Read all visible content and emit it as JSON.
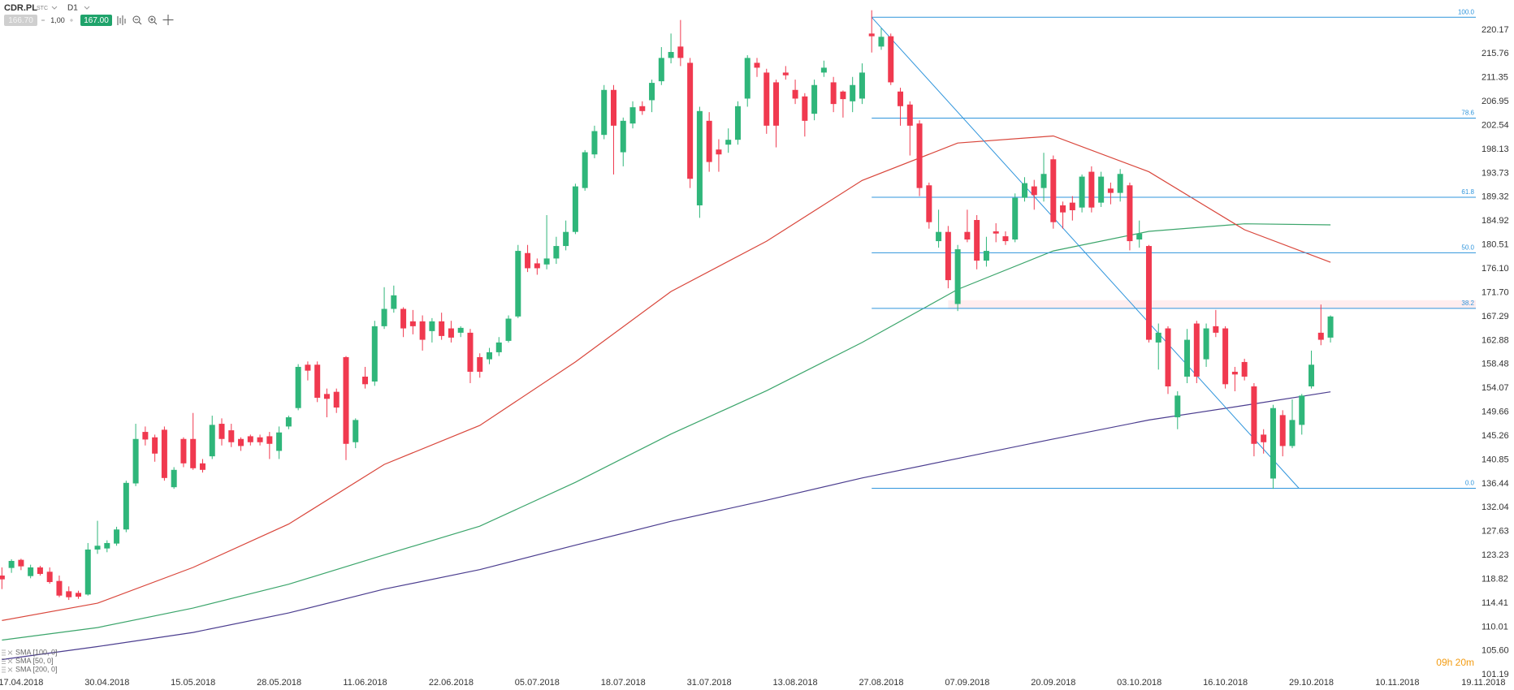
{
  "header": {
    "symbol": "CDR.PL",
    "market": "STC",
    "timeframe": "D1",
    "bid": "166.70",
    "quantity": "1,00",
    "ask": "167.00"
  },
  "countdown": "09h 20m",
  "chart_data": {
    "type": "candlestick",
    "up_color": "#2fb67a",
    "down_color": "#f0394f",
    "candles": {
      "open": [
        119.5,
        120.9,
        122.4,
        119.4,
        121,
        120.2,
        118.5,
        116.6,
        116.3,
        116,
        124.3,
        124.5,
        125.4,
        128,
        136.5,
        146,
        145,
        146.4,
        135.8,
        144.7,
        144.7,
        140.2,
        141.5,
        147.5,
        146.3,
        144.7,
        145.2,
        145,
        145.2,
        142.5,
        147,
        150.4,
        158.4,
        158.4,
        153,
        153.4,
        159.8,
        144.1,
        156.2,
        155.3,
        165.5,
        168.7,
        168.7,
        166.4,
        166.4,
        164.6,
        166.4,
        165.1,
        164.3,
        164.3,
        159.8,
        159.4,
        160.7,
        162.8,
        167.3,
        179,
        177.1,
        176.9,
        178,
        180.3,
        182.9,
        191,
        197.2,
        200.8,
        209.1,
        197.6,
        202.9,
        206.1,
        207.2,
        210.7,
        215,
        217.1,
        214.1,
        187.8,
        203.4,
        198.1,
        199,
        199.9,
        207.5,
        214.1,
        212.3,
        210.5,
        212.3,
        209.1,
        207.9,
        204.7,
        212.3,
        210.5,
        208.8,
        207,
        207.5,
        219.5,
        217.1,
        219,
        208.8,
        206.4,
        202.9,
        191.5,
        181.2,
        182.9,
        169.6,
        182.9,
        185.1,
        177.6,
        183,
        182.1,
        181.5,
        189.2,
        191.3,
        191,
        196.3,
        187.8,
        188.3,
        187.4,
        194,
        188.3,
        190.9,
        190.1,
        191.5,
        181.5,
        180.3,
        162.5,
        165.1,
        148.7,
        156.2,
        166,
        159.4,
        165.5,
        165.1,
        157.1,
        158.9,
        154.4,
        145.5,
        137.4,
        149.1,
        143.4,
        147.3,
        154.4,
        164.3,
        163.4
      ],
      "high": [
        121,
        122.5,
        122.6,
        121.5,
        121.3,
        121,
        119.5,
        117.5,
        116.7,
        125.5,
        129.6,
        126,
        128.5,
        137,
        147.5,
        147,
        145.5,
        147,
        139.5,
        145,
        149.5,
        141,
        149,
        148.5,
        147.5,
        145,
        145.5,
        145.5,
        146,
        147,
        149,
        158.5,
        159,
        159,
        154,
        154,
        160,
        148.5,
        158,
        166.5,
        172.7,
        173,
        169,
        168.5,
        167.5,
        167,
        168,
        166.5,
        165.5,
        165,
        160.5,
        161.5,
        163.5,
        167.5,
        180.5,
        180.5,
        178,
        186,
        182,
        185,
        191.8,
        198,
        202.5,
        210,
        210,
        204,
        207,
        207,
        211,
        217,
        219.5,
        222,
        215,
        206,
        205,
        200,
        202,
        207,
        215.5,
        215,
        213,
        211,
        213.5,
        211,
        208.5,
        211,
        214.5,
        211.5,
        209,
        211.5,
        214,
        223.8,
        220.5,
        219.5,
        209.5,
        207,
        203.5,
        192,
        187,
        184,
        180.5,
        187,
        186,
        182,
        184.5,
        183,
        190,
        193,
        192.5,
        197.5,
        197,
        188.5,
        189.5,
        193.5,
        195,
        194,
        192,
        194.5,
        192,
        185,
        180.5,
        166,
        165.5,
        153.5,
        165,
        166.5,
        166,
        168.5,
        165.5,
        158,
        159.5,
        155,
        146.5,
        151,
        150,
        152,
        153,
        161,
        169.5,
        167.5
      ],
      "low": [
        117,
        120,
        120.5,
        119,
        119.5,
        118,
        115.5,
        115,
        115.2,
        115.8,
        123.5,
        123.8,
        125,
        127.5,
        136,
        143.5,
        140.5,
        137,
        135.5,
        139.5,
        139,
        138.5,
        141,
        143.5,
        143.2,
        142.5,
        143.5,
        143.5,
        141,
        141,
        146.5,
        150,
        155.5,
        151.5,
        148.7,
        149.5,
        140.8,
        143,
        154,
        154.5,
        165,
        168,
        163.5,
        164,
        161,
        162.5,
        163,
        162.5,
        163.5,
        155,
        156,
        158.5,
        160,
        162.5,
        167,
        175.5,
        175,
        176,
        177,
        179.5,
        182.5,
        190.5,
        196.5,
        200,
        193.5,
        195,
        202,
        204.5,
        205,
        210,
        214,
        213.5,
        191,
        185.5,
        194,
        194,
        197.5,
        199,
        206,
        211.5,
        201,
        198.5,
        211,
        206.5,
        200.5,
        203.5,
        211.5,
        205,
        204,
        205,
        206.5,
        216,
        216.5,
        210,
        202.5,
        197,
        189.5,
        183.5,
        180,
        172.5,
        168.3,
        181,
        176,
        176.5,
        181,
        180.5,
        181,
        188.5,
        187,
        188.5,
        183.5,
        183.5,
        185,
        186.5,
        186.5,
        187.5,
        188,
        188.5,
        179.5,
        180,
        162.5,
        157.5,
        153,
        146.5,
        155,
        155,
        158,
        163.5,
        154,
        153.5,
        155.5,
        141.5,
        142,
        135.5,
        141.5,
        143,
        145.5,
        154,
        162,
        162.5
      ],
      "close": [
        118.8,
        122.2,
        121.2,
        121,
        119.8,
        118.3,
        115.8,
        115.5,
        115.6,
        124.3,
        125,
        125.5,
        128,
        136.6,
        144.7,
        144.6,
        142,
        137.5,
        139,
        140.2,
        139.3,
        139,
        147.3,
        144.7,
        144.1,
        143.4,
        144.1,
        144.1,
        143.8,
        145.9,
        148.7,
        158,
        157.3,
        152.3,
        152.1,
        150.5,
        143.8,
        148.2,
        154.8,
        165.5,
        168.7,
        171.2,
        165.1,
        165.5,
        163,
        166.4,
        163.7,
        163.4,
        165.2,
        157.1,
        157.1,
        160.7,
        162.5,
        166.9,
        179.4,
        176.2,
        176.2,
        178,
        180.3,
        182.9,
        191.3,
        197.6,
        201.5,
        209.1,
        202.5,
        203.4,
        205.9,
        205.2,
        210.4,
        215,
        216.1,
        215,
        192.7,
        205.2,
        195.8,
        197.2,
        199.9,
        206.1,
        215,
        213.2,
        202.5,
        202.5,
        211.8,
        207.5,
        203.4,
        210,
        213.2,
        206.5,
        207.4,
        210,
        212.3,
        219,
        218.9,
        210.5,
        206.1,
        202.5,
        191,
        184.7,
        182.9,
        174,
        179.7,
        181.5,
        177.6,
        179.4,
        182.6,
        181.2,
        189.2,
        191.9,
        189.7,
        193.6,
        184.7,
        186.5,
        186.9,
        193.1,
        187.4,
        193.1,
        190.1,
        193.6,
        181.2,
        182.6,
        163,
        164.3,
        154.4,
        152.7,
        163,
        156.2,
        165.1,
        164.3,
        154.8,
        156.6,
        156.2,
        143.8,
        144.1,
        150.4,
        143.4,
        148.2,
        152.7,
        158.4,
        163,
        167.3
      ]
    },
    "series": [
      {
        "name": "SMA [100, 0]",
        "color": "#3ba56b",
        "x": [
          0,
          10,
          20,
          30,
          40,
          50,
          60,
          70,
          80,
          90,
          100,
          110,
          120,
          130,
          139
        ],
        "values": [
          107.6,
          109.9,
          113.5,
          117.9,
          123.3,
          128.6,
          136.7,
          145.6,
          153.6,
          162.5,
          172.3,
          179.4,
          183.0,
          184.4,
          184.2
        ]
      },
      {
        "name": "SMA [50, 0]",
        "color": "#d9463b",
        "x": [
          0,
          10,
          20,
          30,
          40,
          50,
          60,
          70,
          80,
          90,
          100,
          110,
          120,
          130,
          139
        ],
        "values": [
          111.2,
          114.4,
          121.0,
          129.0,
          140.0,
          147.2,
          158.9,
          171.9,
          181.2,
          192.4,
          199.3,
          200.6,
          194.0,
          183.3,
          177.3
        ]
      },
      {
        "name": "SMA [200, 0]",
        "color": "#4b3d8f",
        "x": [
          0,
          10,
          20,
          30,
          40,
          50,
          60,
          70,
          80,
          90,
          100,
          110,
          120,
          130,
          139
        ],
        "values": [
          104.0,
          106.4,
          109.0,
          112.6,
          117.0,
          120.6,
          125.1,
          129.5,
          133.4,
          137.5,
          141.1,
          144.7,
          148.2,
          150.9,
          153.4
        ]
      }
    ],
    "fib": {
      "color": "#2f95dc",
      "from_x": 91,
      "high": 222.5,
      "to_x": 135.7,
      "low": 135.6,
      "levels": [
        {
          "value": 100,
          "label": "100.0"
        },
        {
          "value": 78.6,
          "label": "78.6"
        },
        {
          "value": 61.8,
          "label": "61.8"
        },
        {
          "value": 50,
          "label": "50.0"
        },
        {
          "value": 38.2,
          "label": "38.2"
        },
        {
          "value": 0,
          "label": "0.0"
        }
      ],
      "band": [
        168.7,
        170.3
      ],
      "band_from_x": 99
    },
    "xlim": [
      -0.2,
      158.2
    ],
    "xticks": [
      {
        "value": 2,
        "label": "17.04.2018"
      },
      {
        "value": 11,
        "label": "30.04.2018"
      },
      {
        "value": 20,
        "label": "15.05.2018"
      },
      {
        "value": 29,
        "label": "28.05.2018"
      },
      {
        "value": 38,
        "label": "11.06.2018"
      },
      {
        "value": 47,
        "label": "22.06.2018"
      },
      {
        "value": 56,
        "label": "05.07.2018"
      },
      {
        "value": 65,
        "label": "18.07.2018"
      },
      {
        "value": 74,
        "label": "31.07.2018"
      },
      {
        "value": 83,
        "label": "13.08.2018"
      },
      {
        "value": 92,
        "label": "27.08.2018"
      },
      {
        "value": 101,
        "label": "07.09.2018"
      },
      {
        "value": 110,
        "label": "20.09.2018"
      },
      {
        "value": 119,
        "label": "03.10.2018"
      },
      {
        "value": 128,
        "label": "16.10.2018"
      },
      {
        "value": 137,
        "label": "29.10.2018"
      },
      {
        "value": 146,
        "label": "10.11.2018"
      },
      {
        "value": 155,
        "label": "19.11.2018"
      }
    ],
    "ylim": [
      100.48,
      225.69
    ],
    "yticks": [
      220.17,
      215.76,
      211.35,
      206.95,
      202.54,
      198.13,
      193.73,
      189.32,
      184.92,
      180.51,
      {
        "value": 176.1,
        "label": "176.10"
      },
      {
        "value": 171.7,
        "label": "171.70"
      },
      167.29,
      162.88,
      158.48,
      154.07,
      149.66,
      145.26,
      140.85,
      136.44,
      132.04,
      127.63,
      123.23,
      118.82,
      114.41,
      110.01,
      {
        "value": 105.6,
        "label": "105.60"
      },
      101.19
    ]
  }
}
